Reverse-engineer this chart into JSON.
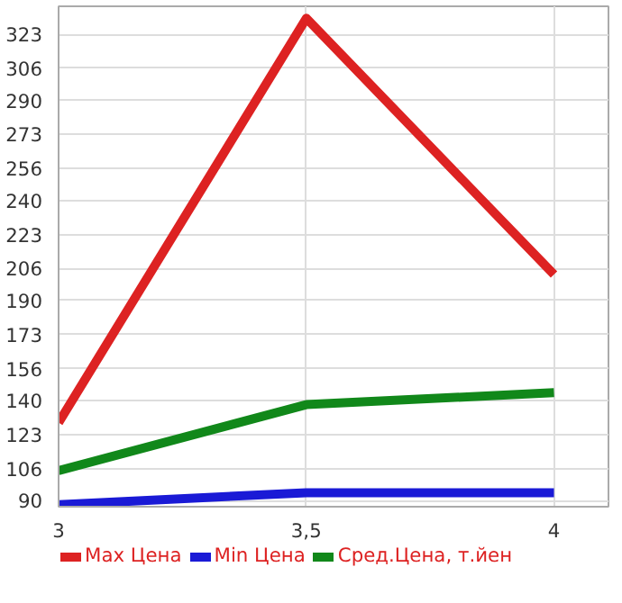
{
  "chart_data": {
    "type": "line",
    "x": [
      3,
      3.5,
      4
    ],
    "series": [
      {
        "name": "Max Цена",
        "color": "#dd2222",
        "values": [
          129,
          331,
          203
        ]
      },
      {
        "name": "Min Цена",
        "color": "#1a1ad6",
        "values": [
          88,
          94,
          94
        ]
      },
      {
        "name": "Сред.Цена, т.йен",
        "color": "#11881a",
        "values": [
          105,
          138,
          144
        ]
      }
    ],
    "xlim": [
      3,
      4.11
    ],
    "ylim": [
      87,
      337
    ],
    "xticks": [
      3,
      {
        "value": 3.5,
        "label": "3,5"
      },
      4
    ],
    "yticks": [
      90,
      106,
      123,
      140,
      156,
      173,
      190,
      206,
      223,
      240,
      256,
      273,
      290,
      306,
      323
    ],
    "grid": true,
    "legend": "bottom",
    "marker": "none",
    "line_style": "solid"
  }
}
